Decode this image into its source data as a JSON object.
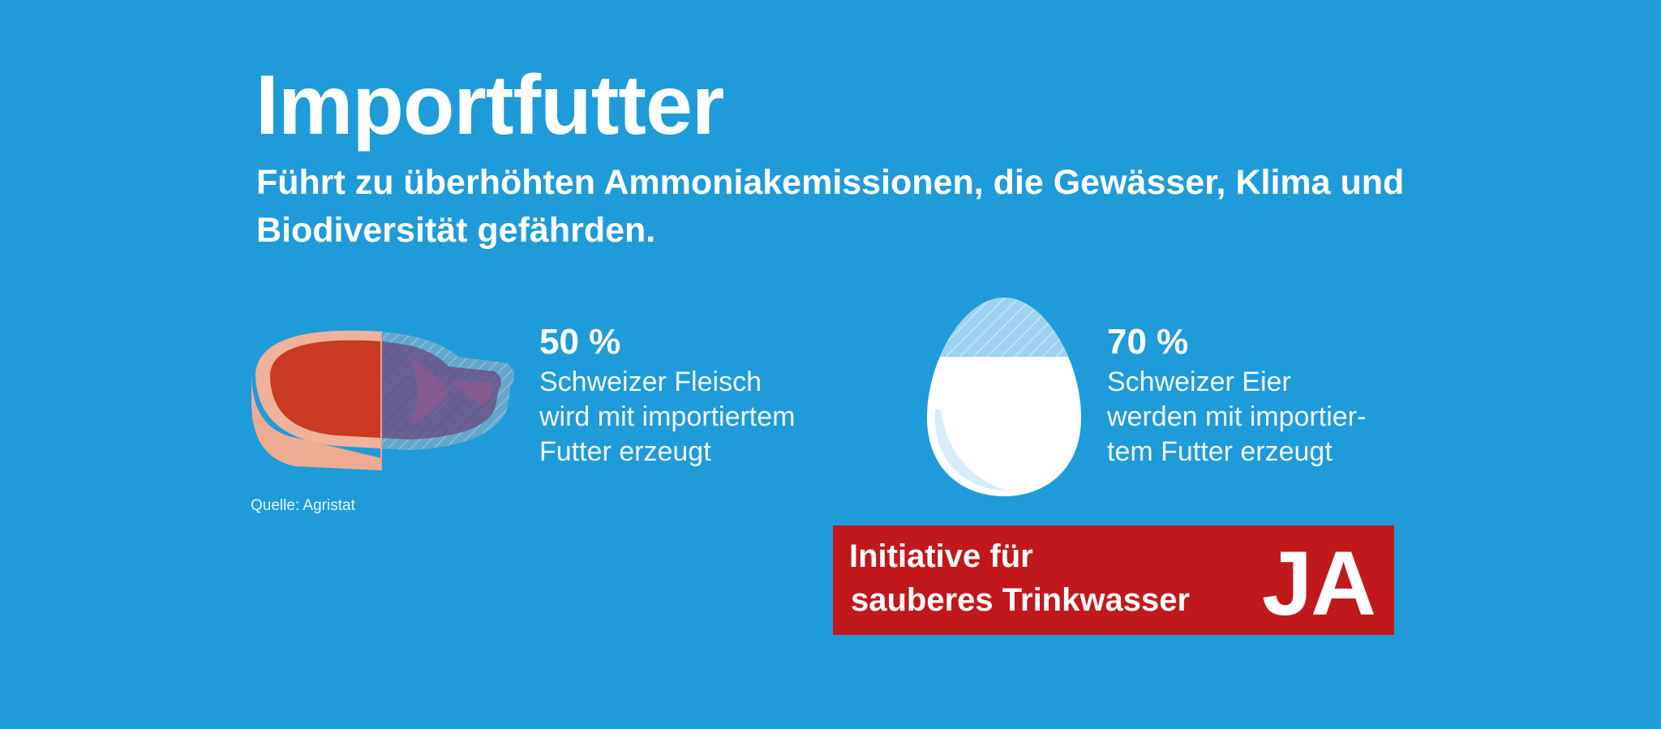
{
  "header": {
    "title": "Importfutter",
    "subtitle": "Führt zu überhöhten Ammoniakemissionen, die Gewässer, Klima und Biodiversität gefährden."
  },
  "stats": [
    {
      "value": "50 %",
      "lines": [
        "Schweizer Fleisch",
        "wird mit importiertem",
        "Futter erzeugt"
      ],
      "icon": "steak-icon",
      "share": 0.5
    },
    {
      "value": "70 %",
      "lines": [
        "Schweizer Eier",
        "werden mit importier-",
        "tem Futter erzeugt"
      ],
      "icon": "egg-icon",
      "share": 0.7
    }
  ],
  "source": "Quelle: Agristat",
  "banner": {
    "line1": "Initiative für",
    "line2": "sauberes Trinkwasser",
    "vote": "JA"
  },
  "colors": {
    "background": "#1f9bd9",
    "banner": "#c1181c",
    "meat": "#c93a22",
    "meat_rim": "#f0b29a",
    "egg": "#ffffff"
  }
}
